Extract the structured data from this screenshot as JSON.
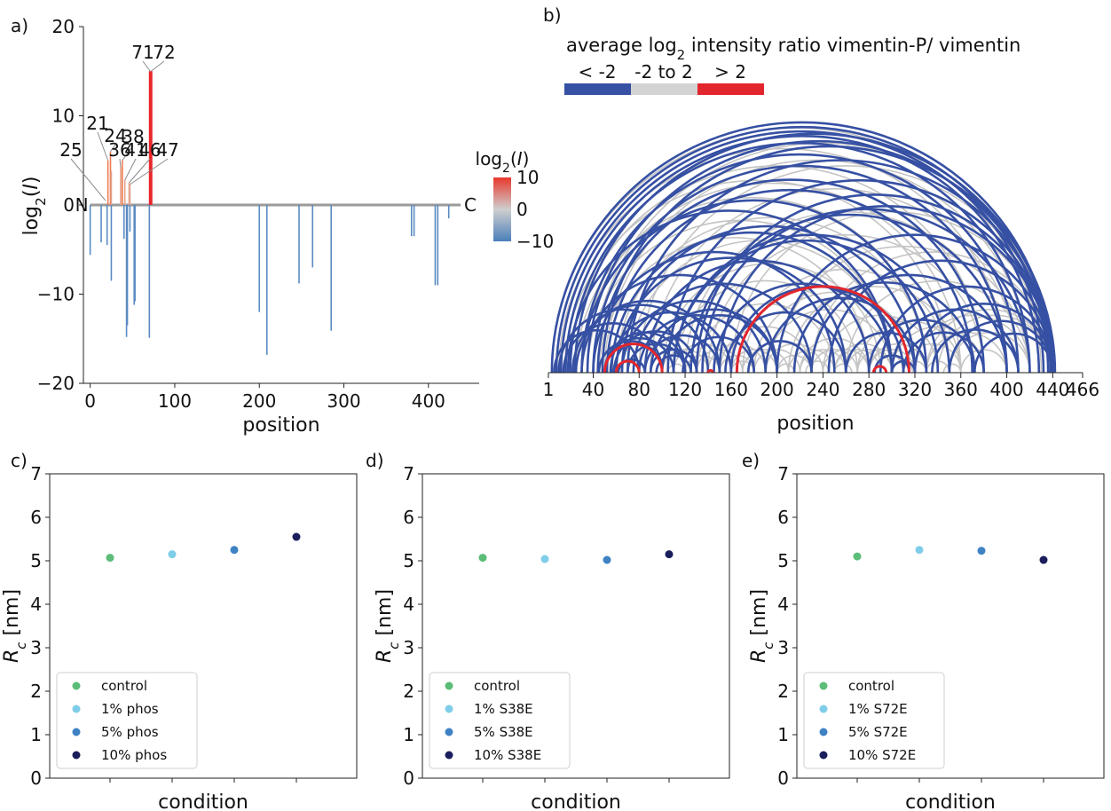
{
  "chart_data": [
    {
      "panel": "a)",
      "type": "bar",
      "ylabel": "log2(I)",
      "xlabel": "position",
      "xlim": [
        -8,
        460
      ],
      "ylim": [
        -20,
        20
      ],
      "x_ticks": [
        0,
        100,
        200,
        300,
        400
      ],
      "y_ticks": [
        -20,
        -10,
        0,
        10,
        20
      ],
      "end_labels": [
        "N",
        "C"
      ],
      "colorbar": {
        "title": "log2(I)",
        "range": [
          -10,
          10
        ],
        "ticks": [
          10,
          0,
          -10
        ],
        "high": "#e8382c",
        "mid": "#cfcfcf",
        "low": "#4a7fba"
      },
      "bars": [
        {
          "x": 0,
          "y": -5.6
        },
        {
          "x": 13,
          "y": -4.2
        },
        {
          "x": 20,
          "y": -4.5
        },
        {
          "x": 25,
          "y": -8.5
        },
        {
          "x": 40,
          "y": -3.8
        },
        {
          "x": 43,
          "y": -14.8
        },
        {
          "x": 44,
          "y": -13.5
        },
        {
          "x": 47,
          "y": -3.0
        },
        {
          "x": 52,
          "y": -11.2
        },
        {
          "x": 53,
          "y": -10.8
        },
        {
          "x": 70,
          "y": -14.9
        },
        {
          "x": 200,
          "y": -12.0
        },
        {
          "x": 209,
          "y": -16.8
        },
        {
          "x": 247,
          "y": -8.8
        },
        {
          "x": 263,
          "y": -7.0
        },
        {
          "x": 285,
          "y": -14.1
        },
        {
          "x": 380,
          "y": -3.5
        },
        {
          "x": 383,
          "y": -3.5
        },
        {
          "x": 408,
          "y": -9.0
        },
        {
          "x": 411,
          "y": -9.0
        },
        {
          "x": 424,
          "y": -1.5
        },
        {
          "x": 21,
          "y": 5.0
        },
        {
          "x": 24,
          "y": 6.0
        },
        {
          "x": 25,
          "y": 3.8
        },
        {
          "x": 36,
          "y": 4.2
        },
        {
          "x": 38,
          "y": 5.0
        },
        {
          "x": 41,
          "y": 2.8
        },
        {
          "x": 46,
          "y": 2.5
        },
        {
          "x": 47,
          "y": 2.3
        },
        {
          "x": 71,
          "y": 15.0
        },
        {
          "x": 72,
          "y": 15.0
        }
      ],
      "annotations": [
        "25",
        "21",
        "24",
        "36",
        "38",
        "41",
        "46",
        "47",
        "71",
        "72"
      ]
    },
    {
      "panel": "b)",
      "type": "arc",
      "title": "average log2 intensity ratio vimentin-P/ vimentin",
      "legend": [
        {
          "label": "< -2",
          "color": "#3650a3"
        },
        {
          "label": "-2 to 2",
          "color": "#d3d3d3"
        },
        {
          "label": "> 2",
          "color": "#e3262d"
        }
      ],
      "xlabel": "position",
      "x_ticks": [
        1,
        40,
        80,
        120,
        160,
        200,
        240,
        280,
        320,
        360,
        400,
        440,
        466
      ],
      "xlim": [
        1,
        466
      ],
      "arcs_blue": [
        [
          4,
          440
        ],
        [
          8,
          436
        ],
        [
          12,
          432
        ],
        [
          16,
          428
        ],
        [
          20,
          420
        ],
        [
          24,
          440
        ],
        [
          30,
          410
        ],
        [
          35,
          438
        ],
        [
          40,
          400
        ],
        [
          44,
          380
        ],
        [
          48,
          442
        ],
        [
          52,
          370
        ],
        [
          56,
          300
        ],
        [
          60,
          260
        ],
        [
          65,
          320
        ],
        [
          70,
          440
        ],
        [
          75,
          230
        ],
        [
          80,
          180
        ],
        [
          85,
          150
        ],
        [
          90,
          130
        ],
        [
          95,
          125
        ],
        [
          100,
          200
        ],
        [
          105,
          440
        ],
        [
          110,
          340
        ],
        [
          118,
          180
        ],
        [
          125,
          400
        ],
        [
          135,
          420
        ],
        [
          145,
          300
        ],
        [
          155,
          260
        ],
        [
          160,
          310
        ],
        [
          175,
          230
        ],
        [
          190,
          320
        ],
        [
          200,
          440
        ],
        [
          215,
          372
        ],
        [
          230,
          400
        ],
        [
          245,
          440
        ],
        [
          260,
          330
        ],
        [
          280,
          372
        ],
        [
          290,
          440
        ],
        [
          300,
          410
        ],
        [
          310,
          380
        ],
        [
          320,
          440
        ],
        [
          335,
          410
        ],
        [
          350,
          440
        ],
        [
          372,
          440
        ],
        [
          10,
          120
        ],
        [
          25,
          150
        ],
        [
          45,
          100
        ],
        [
          50,
          110
        ],
        [
          58,
          130
        ],
        [
          62,
          85
        ],
        [
          70,
          120
        ],
        [
          90,
          200
        ],
        [
          6,
          80
        ],
        [
          14,
          100
        ],
        [
          22,
          140
        ],
        [
          55,
          160
        ],
        [
          65,
          190
        ],
        [
          40,
          250
        ],
        [
          30,
          200
        ],
        [
          18,
          300
        ],
        [
          85,
          280
        ],
        [
          110,
          350
        ],
        [
          130,
          440
        ],
        [
          150,
          440
        ],
        [
          285,
          315
        ],
        [
          300,
          320
        ],
        [
          165,
          315
        ],
        [
          30,
          330
        ],
        [
          50,
          120
        ]
      ],
      "arcs_grey": [
        [
          4,
          430
        ],
        [
          10,
          400
        ],
        [
          20,
          380
        ],
        [
          30,
          360
        ],
        [
          40,
          440
        ],
        [
          50,
          420
        ],
        [
          60,
          330
        ],
        [
          70,
          300
        ],
        [
          80,
          440
        ],
        [
          90,
          410
        ],
        [
          100,
          290
        ],
        [
          110,
          270
        ],
        [
          120,
          400
        ],
        [
          130,
          250
        ],
        [
          140,
          380
        ],
        [
          150,
          230
        ],
        [
          160,
          440
        ],
        [
          170,
          350
        ],
        [
          180,
          320
        ],
        [
          190,
          300
        ],
        [
          200,
          420
        ],
        [
          210,
          360
        ],
        [
          220,
          280
        ],
        [
          230,
          440
        ],
        [
          240,
          340
        ],
        [
          250,
          300
        ],
        [
          260,
          420
        ],
        [
          270,
          360
        ],
        [
          280,
          330
        ],
        [
          290,
          440
        ],
        [
          300,
          380
        ],
        [
          310,
          360
        ],
        [
          320,
          420
        ],
        [
          330,
          400
        ],
        [
          340,
          440
        ],
        [
          350,
          420
        ],
        [
          360,
          400
        ],
        [
          100,
          140
        ],
        [
          110,
          160
        ],
        [
          120,
          150
        ],
        [
          130,
          170
        ],
        [
          140,
          190
        ],
        [
          150,
          180
        ],
        [
          160,
          200
        ],
        [
          170,
          210
        ],
        [
          180,
          220
        ],
        [
          190,
          240
        ],
        [
          200,
          230
        ],
        [
          210,
          250
        ],
        [
          220,
          260
        ],
        [
          230,
          270
        ],
        [
          240,
          280
        ],
        [
          250,
          290
        ],
        [
          260,
          300
        ],
        [
          270,
          310
        ],
        [
          280,
          320
        ],
        [
          105,
          120
        ],
        [
          160,
          180
        ],
        [
          200,
          215
        ],
        [
          225,
          245
        ],
        [
          250,
          265
        ],
        [
          300,
          318
        ],
        [
          310,
          330
        ],
        [
          330,
          350
        ],
        [
          345,
          360
        ],
        [
          330,
          440
        ],
        [
          25,
          330
        ],
        [
          35,
          300
        ],
        [
          45,
          280
        ],
        [
          15,
          350
        ]
      ],
      "arcs_red": [
        [
          50,
          100
        ],
        [
          60,
          80
        ],
        [
          140,
          144
        ],
        [
          165,
          315
        ],
        [
          284,
          295
        ]
      ]
    },
    {
      "panel": "c)",
      "type": "scatter",
      "ylabel": "Rc [nm]",
      "xlabel": "condition",
      "ylim": [
        0,
        7
      ],
      "y_ticks": [
        0,
        1,
        2,
        3,
        4,
        5,
        6,
        7
      ],
      "series": [
        {
          "name": "control",
          "value": 5.07,
          "color": "#5cbd78"
        },
        {
          "name": "1% phos",
          "value": 5.15,
          "color": "#7fcde8"
        },
        {
          "name": "5% phos",
          "value": 5.25,
          "color": "#3f82c4"
        },
        {
          "name": "10% phos",
          "value": 5.55,
          "color": "#1a1e5c"
        }
      ]
    },
    {
      "panel": "d)",
      "type": "scatter",
      "ylabel": "Rc [nm]",
      "xlabel": "condition",
      "ylim": [
        0,
        7
      ],
      "y_ticks": [
        0,
        1,
        2,
        3,
        4,
        5,
        6,
        7
      ],
      "series": [
        {
          "name": "control",
          "value": 5.07,
          "color": "#5cbd78"
        },
        {
          "name": "1% S38E",
          "value": 5.04,
          "color": "#7fcde8"
        },
        {
          "name": "5% S38E",
          "value": 5.02,
          "color": "#3f82c4"
        },
        {
          "name": "10% S38E",
          "value": 5.15,
          "color": "#1a1e5c"
        }
      ]
    },
    {
      "panel": "e)",
      "type": "scatter",
      "ylabel": "Rc [nm]",
      "xlabel": "condition",
      "ylim": [
        0,
        7
      ],
      "y_ticks": [
        0,
        1,
        2,
        3,
        4,
        5,
        6,
        7
      ],
      "series": [
        {
          "name": "control",
          "value": 5.1,
          "color": "#5cbd78"
        },
        {
          "name": "1% S72E",
          "value": 5.25,
          "color": "#7fcde8"
        },
        {
          "name": "5% S72E",
          "value": 5.23,
          "color": "#3f82c4"
        },
        {
          "name": "10% S72E",
          "value": 5.02,
          "color": "#1a1e5c"
        }
      ]
    }
  ]
}
